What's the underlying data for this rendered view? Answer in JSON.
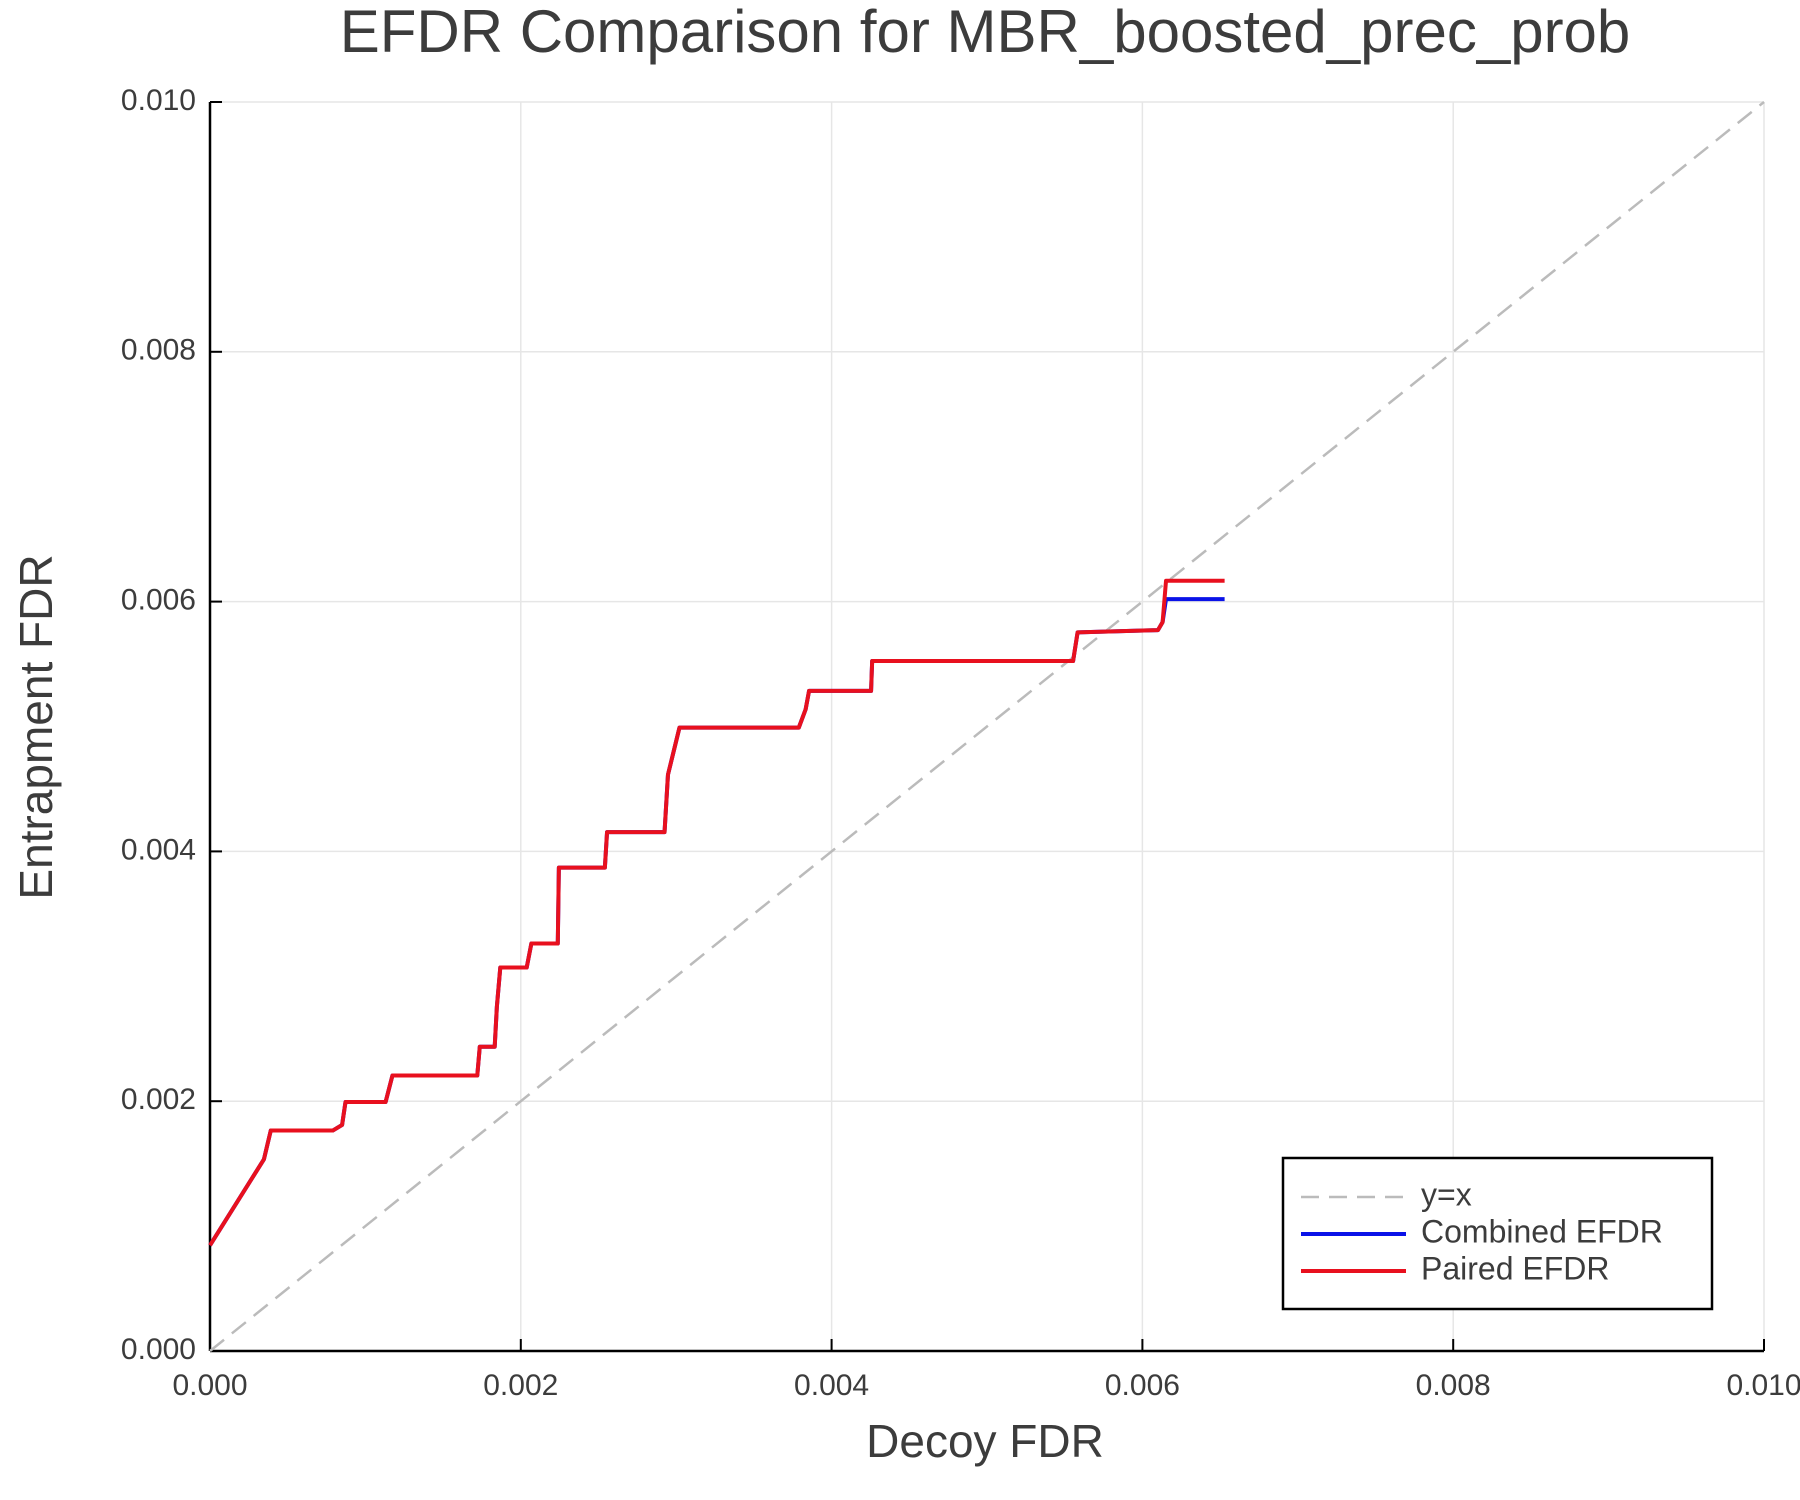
{
  "chart_data": {
    "type": "line",
    "title": "EFDR Comparison for MBR_boosted_prec_prob",
    "xlabel": "Decoy FDR",
    "ylabel": "Entrapment FDR",
    "xlim": [
      0,
      0.01
    ],
    "ylim": [
      0,
      0.01
    ],
    "xticks": [
      {
        "value": 0,
        "label": "0.000"
      },
      {
        "value": 0.002,
        "label": "0.002"
      },
      {
        "value": 0.004,
        "label": "0.004"
      },
      {
        "value": 0.006,
        "label": "0.006"
      },
      {
        "value": 0.008,
        "label": "0.008"
      },
      {
        "value": 0.01,
        "label": "0.010"
      }
    ],
    "yticks": [
      {
        "value": 0,
        "label": "0.000"
      },
      {
        "value": 0.002,
        "label": "0.002"
      },
      {
        "value": 0.004,
        "label": "0.004"
      },
      {
        "value": 0.006,
        "label": "0.006"
      },
      {
        "value": 0.008,
        "label": "0.008"
      },
      {
        "value": 0.01,
        "label": "0.010"
      }
    ],
    "grid": true,
    "legend": "lower right",
    "series": [
      {
        "name": "y=x",
        "color": "#bbbbbb",
        "dash": true,
        "x": [
          0,
          0.01
        ],
        "values": [
          0,
          0.01
        ]
      },
      {
        "name": "Combined EFDR",
        "color": "#0a12e8",
        "x": [
          0,
          0.000347,
          0.000391,
          0.00079,
          0.00085,
          0.000872,
          0.00113,
          0.001174,
          0.00172,
          0.001736,
          0.001832,
          0.001846,
          0.001868,
          0.002038,
          0.002068,
          0.002238,
          0.002245,
          0.002541,
          0.002555,
          0.002925,
          0.002947,
          0.003021,
          0.003789,
          0.003833,
          0.003855,
          0.004254,
          0.004261,
          0.005554,
          0.005583,
          0.0061,
          0.00613,
          0.006152,
          0.006529
        ],
        "values": [
          0.000846,
          0.001535,
          0.001765,
          0.001765,
          0.00181,
          0.001994,
          0.001994,
          0.002206,
          0.002206,
          0.002436,
          0.002436,
          0.002757,
          0.00307,
          0.00307,
          0.003263,
          0.003263,
          0.00387,
          0.00387,
          0.004154,
          0.004154,
          0.004614,
          0.004991,
          0.004991,
          0.005138,
          0.005285,
          0.005285,
          0.005524,
          0.005524,
          0.005754,
          0.005772,
          0.005836,
          0.00602,
          0.00602
        ]
      },
      {
        "name": "Paired EFDR",
        "color": "#e8101e",
        "x": [
          0,
          0.000347,
          0.000391,
          0.00079,
          0.00085,
          0.000872,
          0.00113,
          0.001174,
          0.00172,
          0.001736,
          0.001832,
          0.001846,
          0.001868,
          0.002038,
          0.002068,
          0.002238,
          0.002245,
          0.002541,
          0.002555,
          0.002925,
          0.002947,
          0.003021,
          0.003789,
          0.003833,
          0.003855,
          0.004254,
          0.004261,
          0.005554,
          0.005583,
          0.0061,
          0.00613,
          0.006152,
          0.006529
        ],
        "values": [
          0.000846,
          0.001535,
          0.001765,
          0.001765,
          0.00181,
          0.001994,
          0.001994,
          0.002206,
          0.002206,
          0.002436,
          0.002436,
          0.002757,
          0.00307,
          0.00307,
          0.003263,
          0.003263,
          0.00387,
          0.00387,
          0.004154,
          0.004154,
          0.004614,
          0.004991,
          0.004991,
          0.005138,
          0.005285,
          0.005285,
          0.005524,
          0.005524,
          0.005754,
          0.005772,
          0.005836,
          0.006167,
          0.006167
        ]
      }
    ]
  }
}
